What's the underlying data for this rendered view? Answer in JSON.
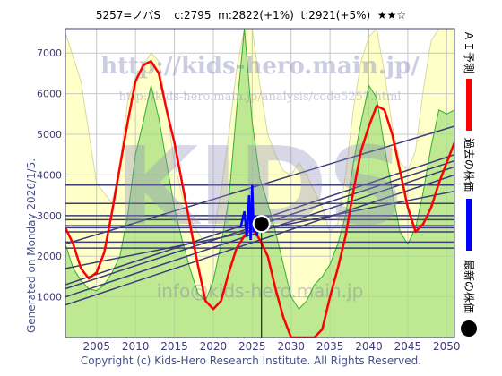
{
  "header": {
    "code": "5257=ノバS",
    "current": "c:2795",
    "mid": "m:2822(+1%)",
    "target": "t:2921(+5%)",
    "stars": "★★☆"
  },
  "side_label": "Generated on Monday 2026/1/5.",
  "footer": "Copyright (c) Kids-Hero Research Institute. All Rights Reserved.",
  "watermarks": {
    "logo": "KIDS",
    "url_main": "http://kids-hero.main.jp/",
    "url_sub": "http://kids-hero.main.jp/analysis/code5257.html",
    "email": "info@kids-hero.main.jp"
  },
  "legend": [
    {
      "label": "ＡＩ予測",
      "color": "#ff0000"
    },
    {
      "label": "過去の株価",
      "color": "#0000ff"
    },
    {
      "label": "最新の株価",
      "color": "#000000"
    }
  ],
  "colors": {
    "plot_bg": "#ffffff",
    "band_fill": "#ffffc8",
    "green_fill": "#a8e080",
    "green_line": "#30b030",
    "trend_line": "#3c3c78",
    "grid": "#c8c8c8",
    "axis_text": "#3c3c78",
    "prediction": "#ff0000",
    "history": "#0000ff",
    "latest": "#000000"
  },
  "chart_data": {
    "type": "line",
    "xlim": [
      2001,
      2051
    ],
    "ylim": [
      0,
      7600
    ],
    "x_ticks": [
      2005,
      2010,
      2015,
      2020,
      2025,
      2030,
      2035,
      2040,
      2045,
      2050
    ],
    "y_ticks": [
      1000,
      2000,
      3000,
      4000,
      5000,
      6000,
      7000
    ],
    "grid": true,
    "latest_point": {
      "x": 2026.2,
      "y": 2795
    },
    "horizontal_levels": [
      2200,
      2350,
      2600,
      2700,
      2750,
      2900,
      3000,
      3300,
      3750
    ],
    "trend_lines": [
      {
        "x1": 2001,
        "y1": 800,
        "x2": 2051,
        "y2": 4000
      },
      {
        "x1": 2001,
        "y1": 1000,
        "x2": 2051,
        "y2": 4200
      },
      {
        "x1": 2001,
        "y1": 1200,
        "x2": 2051,
        "y2": 4350
      },
      {
        "x1": 2001,
        "y1": 1300,
        "x2": 2051,
        "y2": 4500
      },
      {
        "x1": 2001,
        "y1": 2300,
        "x2": 2051,
        "y2": 5200
      },
      {
        "x1": 2001,
        "y1": 1700,
        "x2": 2051,
        "y2": 3600
      }
    ],
    "band_upper": [
      [
        2001,
        7500
      ],
      [
        2003,
        6300
      ],
      [
        2005,
        3800
      ],
      [
        2007,
        3300
      ],
      [
        2008,
        4300
      ],
      [
        2009,
        5800
      ],
      [
        2010,
        6400
      ],
      [
        2012,
        7000
      ],
      [
        2013,
        6800
      ],
      [
        2014,
        5600
      ],
      [
        2015,
        4300
      ],
      [
        2016,
        3500
      ],
      [
        2017,
        2900
      ],
      [
        2018,
        2600
      ],
      [
        2019,
        2300
      ],
      [
        2020,
        2500
      ],
      [
        2021,
        3600
      ],
      [
        2022,
        5000
      ],
      [
        2023,
        6600
      ],
      [
        2024,
        7600
      ],
      [
        2025,
        7600
      ],
      [
        2026,
        6200
      ],
      [
        2027,
        5000
      ],
      [
        2028,
        4500
      ],
      [
        2029,
        4100
      ],
      [
        2030,
        4000
      ],
      [
        2031,
        4300
      ],
      [
        2032,
        4000
      ],
      [
        2033,
        3600
      ],
      [
        2034,
        3200
      ],
      [
        2035,
        2600
      ],
      [
        2036,
        2800
      ],
      [
        2037,
        4000
      ],
      [
        2038,
        5600
      ],
      [
        2039,
        6800
      ],
      [
        2040,
        7400
      ],
      [
        2041,
        7600
      ],
      [
        2042,
        6500
      ],
      [
        2043,
        5200
      ],
      [
        2044,
        4300
      ],
      [
        2045,
        4100
      ],
      [
        2046,
        4600
      ],
      [
        2047,
        6100
      ],
      [
        2048,
        7300
      ],
      [
        2049,
        7600
      ],
      [
        2050,
        7600
      ],
      [
        2051,
        7600
      ]
    ],
    "green_area": [
      [
        2001,
        2300
      ],
      [
        2002,
        1700
      ],
      [
        2003,
        1400
      ],
      [
        2004,
        1200
      ],
      [
        2005,
        1150
      ],
      [
        2006,
        1300
      ],
      [
        2007,
        1600
      ],
      [
        2008,
        2000
      ],
      [
        2009,
        3000
      ],
      [
        2010,
        4500
      ],
      [
        2011,
        5300
      ],
      [
        2012,
        6200
      ],
      [
        2013,
        5400
      ],
      [
        2014,
        4300
      ],
      [
        2015,
        3200
      ],
      [
        2016,
        2400
      ],
      [
        2017,
        1700
      ],
      [
        2018,
        1100
      ],
      [
        2019,
        900
      ],
      [
        2020,
        1400
      ],
      [
        2021,
        2300
      ],
      [
        2022,
        3400
      ],
      [
        2023,
        5600
      ],
      [
        2024,
        7600
      ],
      [
        2025,
        5300
      ],
      [
        2026,
        3900
      ],
      [
        2027,
        3300
      ],
      [
        2028,
        2600
      ],
      [
        2029,
        1800
      ],
      [
        2030,
        1000
      ],
      [
        2031,
        700
      ],
      [
        2032,
        900
      ],
      [
        2033,
        1300
      ],
      [
        2034,
        1500
      ],
      [
        2035,
        1800
      ],
      [
        2036,
        2300
      ],
      [
        2037,
        3000
      ],
      [
        2038,
        4300
      ],
      [
        2039,
        5300
      ],
      [
        2040,
        6200
      ],
      [
        2041,
        5900
      ],
      [
        2042,
        4700
      ],
      [
        2043,
        3600
      ],
      [
        2044,
        2600
      ],
      [
        2045,
        2300
      ],
      [
        2046,
        2700
      ],
      [
        2047,
        3600
      ],
      [
        2048,
        4700
      ],
      [
        2049,
        5600
      ],
      [
        2050,
        5500
      ],
      [
        2051,
        5600
      ]
    ],
    "prediction": [
      [
        2001,
        2700
      ],
      [
        2002,
        2300
      ],
      [
        2003,
        1700
      ],
      [
        2004,
        1450
      ],
      [
        2005,
        1600
      ],
      [
        2006,
        2100
      ],
      [
        2007,
        3100
      ],
      [
        2008,
        4200
      ],
      [
        2009,
        5300
      ],
      [
        2010,
        6300
      ],
      [
        2011,
        6700
      ],
      [
        2012,
        6800
      ],
      [
        2013,
        6500
      ],
      [
        2014,
        5600
      ],
      [
        2015,
        4800
      ],
      [
        2016,
        3800
      ],
      [
        2017,
        2800
      ],
      [
        2018,
        1800
      ],
      [
        2019,
        900
      ],
      [
        2020,
        700
      ],
      [
        2021,
        900
      ],
      [
        2022,
        1600
      ],
      [
        2023,
        2200
      ],
      [
        2024,
        2500
      ],
      [
        2025,
        2700
      ],
      [
        2026,
        2400
      ],
      [
        2027,
        2000
      ],
      [
        2028,
        1200
      ],
      [
        2029,
        500
      ],
      [
        2030,
        0
      ],
      [
        2031,
        0
      ],
      [
        2032,
        0
      ],
      [
        2033,
        0
      ],
      [
        2034,
        200
      ],
      [
        2035,
        1000
      ],
      [
        2036,
        1700
      ],
      [
        2037,
        2500
      ],
      [
        2038,
        3600
      ],
      [
        2039,
        4600
      ],
      [
        2040,
        5200
      ],
      [
        2041,
        5700
      ],
      [
        2042,
        5600
      ],
      [
        2043,
        5000
      ],
      [
        2044,
        4100
      ],
      [
        2045,
        3200
      ],
      [
        2046,
        2600
      ],
      [
        2047,
        2800
      ],
      [
        2048,
        3200
      ],
      [
        2049,
        3800
      ],
      [
        2050,
        4300
      ],
      [
        2051,
        4800
      ]
    ],
    "history": [
      [
        2023.5,
        2700
      ],
      [
        2024.0,
        3100
      ],
      [
        2024.3,
        2500
      ],
      [
        2024.6,
        3500
      ],
      [
        2024.8,
        2400
      ],
      [
        2025.0,
        3750
      ],
      [
        2025.2,
        2600
      ],
      [
        2025.4,
        3000
      ],
      [
        2025.6,
        2500
      ],
      [
        2025.8,
        2800
      ],
      [
        2026.0,
        2750
      ],
      [
        2026.2,
        2795
      ]
    ]
  }
}
